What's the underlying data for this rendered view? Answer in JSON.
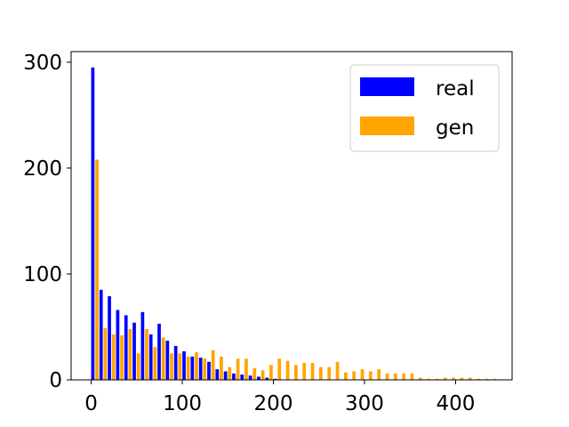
{
  "chart_data": {
    "type": "bar",
    "title": "",
    "xlabel": "",
    "ylabel": "",
    "xlim": [
      -22,
      462
    ],
    "ylim": [
      0,
      310
    ],
    "xticks": [
      0,
      100,
      200,
      300,
      400
    ],
    "yticks": [
      0,
      100,
      200,
      300
    ],
    "bin_width": 9.1,
    "x": [
      0,
      9.1,
      18.2,
      27.3,
      36.4,
      45.5,
      54.6,
      63.7,
      72.8,
      81.9,
      91.0,
      100.1,
      109.2,
      118.3,
      127.4,
      136.5,
      145.6,
      154.7,
      163.8,
      172.9,
      182.0,
      191.1,
      200.2,
      209.3,
      218.4,
      227.5,
      236.6,
      245.7,
      254.8,
      263.9,
      273.0,
      282.1,
      291.2,
      300.3,
      309.4,
      318.5,
      327.6,
      336.7,
      345.8,
      354.9,
      364.0,
      373.1,
      382.2,
      391.3,
      400.4,
      409.5,
      418.6,
      427.7,
      436.8
    ],
    "series": [
      {
        "name": "real",
        "color": "#0000ff",
        "values": [
          295,
          85,
          79,
          66,
          61,
          54,
          64,
          43,
          53,
          37,
          32,
          27,
          22,
          21,
          17,
          10,
          8,
          6,
          5,
          4,
          3,
          2,
          1,
          0,
          0,
          0,
          0,
          0,
          0,
          0,
          0,
          0,
          0,
          0,
          0,
          0,
          0,
          0,
          0,
          0,
          0,
          0,
          0,
          0,
          0,
          0,
          0,
          0,
          0
        ]
      },
      {
        "name": "gen",
        "color": "#ffa500",
        "values": [
          208,
          49,
          43,
          42,
          48,
          25,
          48,
          31,
          40,
          25,
          25,
          22,
          26,
          20,
          28,
          22,
          12,
          20,
          20,
          11,
          9,
          14,
          20,
          18,
          14,
          16,
          16,
          12,
          12,
          17,
          7,
          8,
          10,
          8,
          10,
          6,
          6,
          6,
          6,
          2,
          1,
          1,
          2,
          2,
          2,
          2,
          1,
          1,
          1
        ]
      }
    ],
    "legend_position": "top-right",
    "grid": false
  }
}
